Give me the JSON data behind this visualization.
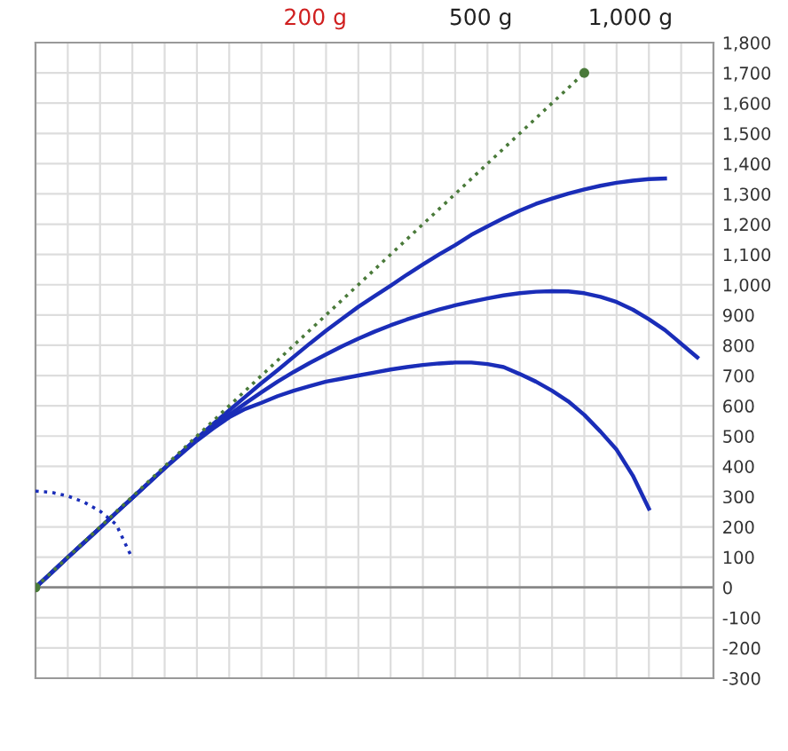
{
  "chart_data": {
    "type": "line",
    "annotations": [
      "200 g",
      "500 g",
      "1,000 g"
    ],
    "categories": [
      null,
      null,
      null,
      null,
      null,
      null,
      null,
      null,
      null,
      null,
      null,
      null,
      null,
      null,
      null,
      null,
      null,
      null,
      null,
      null,
      null,
      null,
      null,
      null,
      null,
      null,
      null,
      null,
      null,
      null,
      null,
      null,
      null,
      null,
      null,
      null,
      null,
      null,
      null,
      null,
      null,
      null,
      null
    ],
    "series": [
      {
        "color": "#1a2db8",
        "values": [
          0,
          49,
          99,
          148,
          197,
          247,
          296,
          345,
          394,
          440,
          485,
          525,
          562,
          590,
          610,
          632,
          650,
          665,
          680,
          690,
          700,
          710,
          720,
          728,
          735,
          740,
          743,
          743,
          738,
          728,
          705,
          680,
          650,
          615,
          570,
          515,
          455,
          370,
          260,
          null,
          null,
          null,
          null
        ]
      },
      {
        "color": "#1a2db8",
        "values": [
          0,
          49,
          99,
          148,
          197,
          247,
          296,
          345,
          394,
          443,
          490,
          530,
          570,
          608,
          645,
          680,
          712,
          742,
          770,
          797,
          822,
          845,
          866,
          885,
          902,
          918,
          932,
          944,
          955,
          965,
          972,
          977,
          979,
          978,
          972,
          960,
          943,
          918,
          886,
          850,
          805,
          760,
          null
        ]
      },
      {
        "color": "#1a2db8",
        "values": [
          0,
          49,
          99,
          148,
          197,
          247,
          296,
          345,
          394,
          443,
          493,
          540,
          585,
          630,
          675,
          718,
          762,
          806,
          848,
          888,
          927,
          962,
          997,
          1033,
          1067,
          1100,
          1131,
          1165,
          1193,
          1220,
          1245,
          1267,
          1285,
          1301,
          1315,
          1327,
          1337,
          1344,
          1349,
          1351,
          null,
          null,
          null
        ]
      },
      {
        "color": "#4a7a3a",
        "line_style": "dotted",
        "marker": "circle",
        "values": [
          0,
          null,
          null,
          null,
          null,
          null,
          null,
          null,
          null,
          null,
          null,
          null,
          null,
          null,
          null,
          null,
          null,
          null,
          null,
          null,
          null,
          null,
          null,
          null,
          null,
          null,
          null,
          null,
          null,
          null,
          null,
          null,
          null,
          null,
          1700,
          null,
          null,
          null,
          null,
          null,
          null,
          null,
          null
        ]
      },
      {
        "color": "#1a2db8",
        "line_style": "dotted",
        "values": [
          318,
          314,
          302,
          282,
          252,
          208,
          95,
          null,
          null,
          null,
          null,
          null,
          null,
          null,
          null,
          null,
          null,
          null,
          null,
          null,
          null,
          null,
          null,
          null,
          null,
          null,
          null,
          null,
          null,
          null,
          null,
          null,
          null,
          null,
          null,
          null,
          null,
          null,
          null,
          null,
          null,
          null,
          null
        ]
      }
    ],
    "ylim": [
      -300,
      1800
    ],
    "yticks": [
      {
        "value": -300,
        "label": "-300"
      },
      {
        "value": -200,
        "label": "-200"
      },
      {
        "value": -100,
        "label": "-100"
      },
      0,
      100,
      200,
      300,
      400,
      500,
      600,
      700,
      800,
      900,
      {
        "value": 1000,
        "label": "1,000"
      },
      {
        "value": 1100,
        "label": "1,100"
      },
      {
        "value": 1200,
        "label": "1,200"
      },
      {
        "value": 1300,
        "label": "1,300"
      },
      {
        "value": 1400,
        "label": "1,400"
      },
      {
        "value": 1500,
        "label": "1,500"
      },
      {
        "value": 1600,
        "label": "1,600"
      },
      {
        "value": 1700,
        "label": "1,700"
      },
      {
        "value": 1800,
        "label": "1,800"
      }
    ],
    "ref_lines": [
      {
        "axis": "y",
        "value": 0,
        "color": "#888888"
      }
    ],
    "grid": true,
    "tick_labels": "y"
  }
}
